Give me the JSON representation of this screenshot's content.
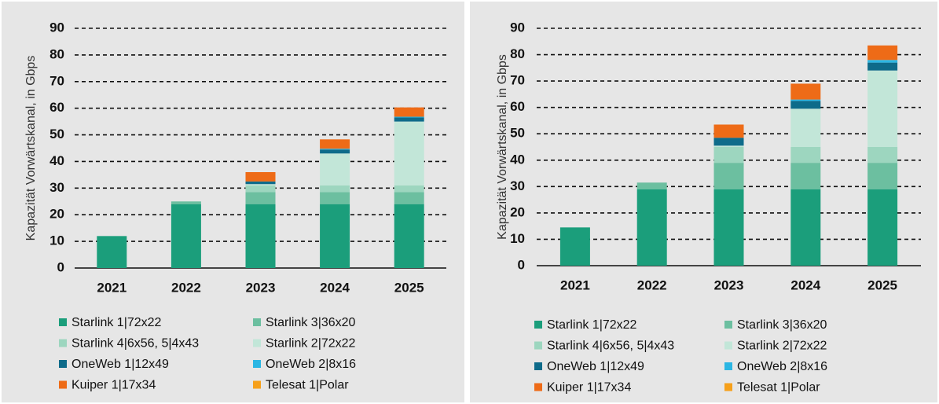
{
  "chart_data": [
    {
      "type": "stacked_bar",
      "ylabel": "Kapazität Vorwärtskanal, in Gbps",
      "categories": [
        "2021",
        "2022",
        "2023",
        "2024",
        "2025"
      ],
      "ylim": [
        0,
        90
      ],
      "yticks": [
        0,
        10,
        20,
        30,
        40,
        50,
        60,
        70,
        80,
        90
      ],
      "grid": true,
      "series": [
        {
          "name": "Starlink 1|72x22",
          "color": "#1b9e7b",
          "values": [
            12,
            24,
            24,
            24,
            24
          ]
        },
        {
          "name": "Starlink 3|36x20",
          "color": "#6cbfa0",
          "values": [
            0,
            1,
            4.5,
            4.5,
            4.5
          ]
        },
        {
          "name": "Starlink 4|6x56, 5|4x43",
          "color": "#9dd6bf",
          "values": [
            0,
            0,
            2.5,
            2.5,
            2.5
          ]
        },
        {
          "name": "Starlink 2|72x22",
          "color": "#c2e6d8",
          "values": [
            0,
            0,
            0.5,
            12,
            24
          ]
        },
        {
          "name": "OneWeb 1|12x49",
          "color": "#0e6b8a",
          "values": [
            0,
            0,
            1,
            1.5,
            1.5
          ]
        },
        {
          "name": "OneWeb 2|8x16",
          "color": "#2bb6e3",
          "values": [
            0,
            0,
            0,
            0.3,
            0.3
          ]
        },
        {
          "name": "Kuiper 1|17x34",
          "color": "#ee6b17",
          "values": [
            0,
            0,
            3.5,
            3.5,
            3.5
          ]
        },
        {
          "name": "Telesat 1|Polar",
          "color": "#f6a01a",
          "values": [
            0,
            0,
            0,
            0,
            0
          ]
        }
      ]
    },
    {
      "type": "stacked_bar",
      "ylabel": "Kapazität Vorwärtskanal, in Gbps",
      "categories": [
        "2021",
        "2022",
        "2023",
        "2024",
        "2025"
      ],
      "ylim": [
        0,
        90
      ],
      "yticks": [
        0,
        10,
        20,
        30,
        40,
        50,
        60,
        70,
        80,
        90
      ],
      "grid": true,
      "series": [
        {
          "name": "Starlink 1|72x22",
          "color": "#1b9e7b",
          "values": [
            14.5,
            29,
            29,
            29,
            29
          ]
        },
        {
          "name": "Starlink 3|36x20",
          "color": "#6cbfa0",
          "values": [
            0,
            2.5,
            10,
            10,
            10
          ]
        },
        {
          "name": "Starlink 4|6x56, 5|4x43",
          "color": "#9dd6bf",
          "values": [
            0,
            0,
            6,
            6,
            6
          ]
        },
        {
          "name": "Starlink 2|72x22",
          "color": "#c2e6d8",
          "values": [
            0,
            0,
            0.5,
            14.5,
            29
          ]
        },
        {
          "name": "OneWeb 1|12x49",
          "color": "#0e6b8a",
          "values": [
            0,
            0,
            3,
            3,
            3
          ]
        },
        {
          "name": "OneWeb 2|8x16",
          "color": "#2bb6e3",
          "values": [
            0,
            0,
            0,
            0.5,
            1
          ]
        },
        {
          "name": "Kuiper 1|17x34",
          "color": "#ee6b17",
          "values": [
            0,
            0,
            5,
            6,
            5.5
          ]
        },
        {
          "name": "Telesat 1|Polar",
          "color": "#f6a01a",
          "values": [
            0,
            0,
            0,
            0,
            0
          ]
        }
      ]
    }
  ]
}
